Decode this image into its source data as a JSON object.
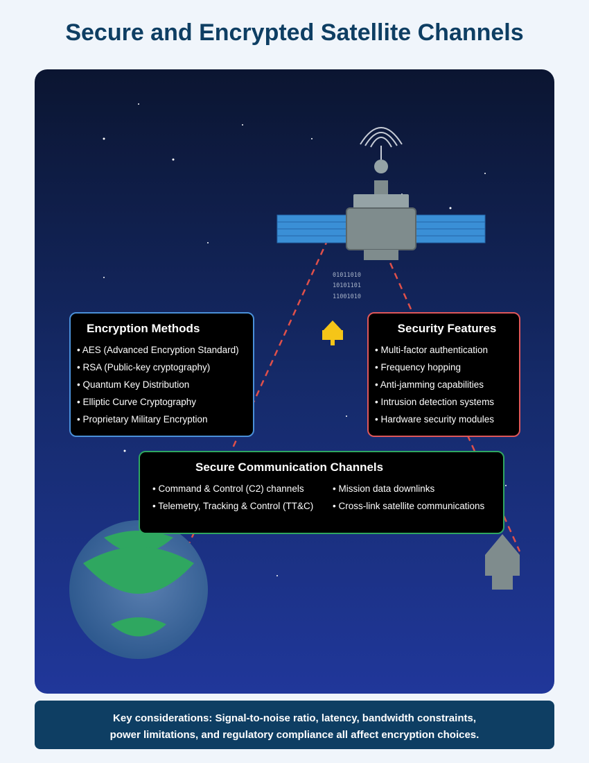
{
  "title": "Secure and Encrypted Satellite Channels",
  "binary": [
    "01011010",
    "10101101",
    "11001010"
  ],
  "encryption": {
    "heading": "Encryption Methods",
    "items": [
      "AES (Advanced Encryption Standard)",
      "RSA (Public-key cryptography)",
      "Quantum Key Distribution",
      "Elliptic Curve Cryptography",
      "Proprietary Military Encryption"
    ]
  },
  "security": {
    "heading": "Security Features",
    "items": [
      "Multi-factor authentication",
      "Frequency hopping",
      "Anti-jamming capabilities",
      "Intrusion detection systems",
      "Hardware security modules"
    ]
  },
  "channels": {
    "heading": "Secure Communication Channels",
    "col1": [
      "Command & Control (C2) channels",
      "Telemetry, Tracking & Control (TT&C)"
    ],
    "col2": [
      "Mission data downlinks",
      "Cross-link satellite communications"
    ]
  },
  "footer": {
    "line1": "Key considerations: Signal-to-noise ratio, latency, bandwidth constraints,",
    "line2": "power limitations, and regulatory compliance all affect encryption choices."
  },
  "colors": {
    "title": "#0e3e63",
    "encryption_border": "#4a90d9",
    "security_border": "#e0575a",
    "channels_border": "#2fa760",
    "signal_line": "#e0504a",
    "lock": "#f5c518"
  },
  "icons": [
    "satellite-icon",
    "signal-waves-icon",
    "lock-icon",
    "earth-icon",
    "ground-station-icon"
  ]
}
